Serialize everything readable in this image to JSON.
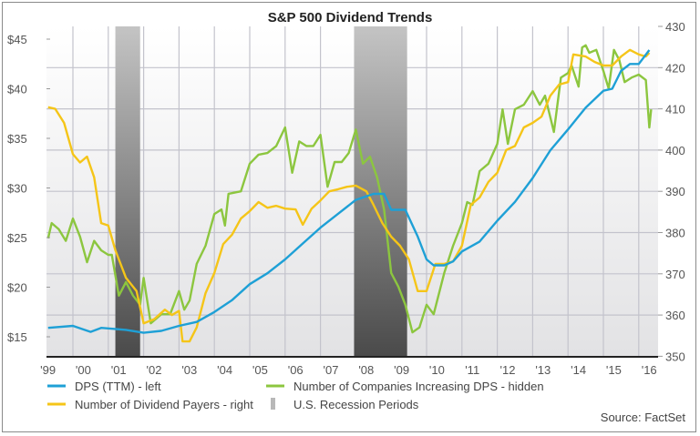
{
  "chart_data": {
    "type": "line",
    "title": "S&P 500 Dividend Trends",
    "source": "Source: FactSet",
    "x_ticks": [
      "'99",
      "'00",
      "'01",
      "'02",
      "'03",
      "'04",
      "'05",
      "'06",
      "'07",
      "'08",
      "'09",
      "'10",
      "'11",
      "'12",
      "'13",
      "'14",
      "'15",
      "'16"
    ],
    "left_axis": {
      "ticks": [
        "$15",
        "$20",
        "$25",
        "$30",
        "$35",
        "$40",
        "$45"
      ],
      "values": [
        15,
        20,
        25,
        30,
        35,
        40,
        45
      ],
      "range": [
        13,
        46.2
      ]
    },
    "right_axis": {
      "ticks": [
        "350",
        "360",
        "370",
        "380",
        "390",
        "400",
        "410",
        "420",
        "430"
      ],
      "values": [
        350,
        360,
        370,
        380,
        390,
        400,
        410,
        420,
        430
      ],
      "range": [
        350,
        430
      ]
    },
    "grid": true,
    "legend_placement": "bottom",
    "recessions": [
      {
        "start": 2001.2,
        "end": 2001.9
      },
      {
        "start": 2007.95,
        "end": 2009.45
      }
    ],
    "legend": [
      {
        "label": "DPS (TTM) - left",
        "color": "#1ea0d6",
        "kind": "line"
      },
      {
        "label": "Number of Companies Increasing DPS - hidden",
        "color": "#8cc63f",
        "kind": "line"
      },
      {
        "label": "Number of Dividend Payers - right",
        "color": "#f5c518",
        "kind": "line"
      },
      {
        "label": "U.S. Recession Periods",
        "color": "#b8b8b8",
        "kind": "bar"
      }
    ],
    "series": [
      {
        "name": "DPS (TTM) - left",
        "axis": "left",
        "color": "#1ea0d6",
        "x": [
          1999.3,
          2000.0,
          2000.5,
          2000.8,
          2001.5,
          2002.0,
          2002.5,
          2003.0,
          2003.5,
          2004.0,
          2004.5,
          2005.0,
          2005.5,
          2006.0,
          2006.5,
          2007.0,
          2007.5,
          2008.0,
          2008.5,
          2008.8,
          2009.0,
          2009.4,
          2009.75,
          2010.0,
          2010.2,
          2010.5,
          2010.75,
          2011.0,
          2011.5,
          2012.0,
          2012.5,
          2013.0,
          2013.5,
          2014.0,
          2014.5,
          2015.0,
          2015.25,
          2015.5,
          2015.75,
          2016.0,
          2016.3
        ],
        "y": [
          15.9,
          16.1,
          15.5,
          15.9,
          15.7,
          15.4,
          15.6,
          16.1,
          16.5,
          17.5,
          18.7,
          20.3,
          21.4,
          22.8,
          24.4,
          26.0,
          27.4,
          28.8,
          29.4,
          29.4,
          27.8,
          27.8,
          25.1,
          22.8,
          22.2,
          22.2,
          22.6,
          23.6,
          24.6,
          26.7,
          28.6,
          31.0,
          33.8,
          35.9,
          38.1,
          39.8,
          40.0,
          41.8,
          42.5,
          42.5,
          43.9
        ]
      },
      {
        "name": "Number of Companies Increasing DPS - hidden",
        "axis": "hidden",
        "color": "#8cc63f",
        "x": [
          1999.3,
          1999.4,
          1999.6,
          1999.8,
          2000.0,
          2000.2,
          2000.4,
          2000.6,
          2000.8,
          2001.0,
          2001.1,
          2001.3,
          2001.5,
          2001.7,
          2001.9,
          2002.0,
          2002.2,
          2002.5,
          2002.75,
          2003.0,
          2003.15,
          2003.3,
          2003.5,
          2003.75,
          2004.0,
          2004.2,
          2004.3,
          2004.4,
          2004.75,
          2005.0,
          2005.25,
          2005.5,
          2005.75,
          2006.0,
          2006.2,
          2006.4,
          2006.6,
          2006.8,
          2007.0,
          2007.2,
          2007.4,
          2007.6,
          2007.8,
          2008.0,
          2008.2,
          2008.4,
          2008.6,
          2008.8,
          2009.0,
          2009.2,
          2009.4,
          2009.6,
          2009.8,
          2010.0,
          2010.2,
          2010.5,
          2010.75,
          2011.0,
          2011.15,
          2011.3,
          2011.5,
          2011.75,
          2012.0,
          2012.15,
          2012.3,
          2012.5,
          2012.75,
          2013.0,
          2013.2,
          2013.35,
          2013.6,
          2013.8,
          2014.0,
          2014.1,
          2014.3,
          2014.4,
          2014.5,
          2014.6,
          2014.8,
          2015.0,
          2015.15,
          2015.3,
          2015.45,
          2015.6,
          2015.8,
          2016.0,
          2016.2,
          2016.3,
          2016.35
        ],
        "y": [
          378.6,
          382.3,
          380.8,
          378,
          383.4,
          379,
          372.8,
          378,
          375.7,
          374.6,
          374.6,
          364.7,
          368,
          364.7,
          362.5,
          369,
          358,
          360.2,
          360.2,
          365.8,
          361.3,
          363.5,
          372.4,
          376.8,
          384.5,
          385.6,
          381.7,
          389.4,
          390,
          396.7,
          398.9,
          399.3,
          401,
          405.5,
          394.5,
          402.1,
          401,
          401,
          403.7,
          391.1,
          397.1,
          397.1,
          399.3,
          405,
          396.7,
          398.4,
          393.4,
          385.6,
          370.2,
          366.9,
          362.5,
          355.8,
          357,
          362.5,
          360.2,
          370.2,
          376.8,
          382.3,
          387.4,
          386.7,
          394.9,
          396.7,
          401.5,
          409.9,
          401.5,
          409.9,
          411,
          414.3,
          411,
          413.2,
          404.4,
          417.6,
          418.7,
          420.5,
          415.4,
          424.9,
          425.4,
          423.6,
          424.3,
          419.2,
          414.9,
          424.3,
          421.8,
          416.5,
          417.6,
          418.3,
          417,
          405.5,
          409.9
        ]
      },
      {
        "name": "Number of Dividend Payers - right",
        "axis": "right",
        "color": "#f5c518",
        "x": [
          1999.3,
          1999.5,
          1999.75,
          2000.0,
          2000.2,
          2000.4,
          2000.6,
          2000.8,
          2001.0,
          2001.2,
          2001.5,
          2001.8,
          2002.0,
          2002.3,
          2002.6,
          2002.8,
          2003.0,
          2003.1,
          2003.3,
          2003.5,
          2003.75,
          2004.0,
          2004.25,
          2004.5,
          2004.75,
          2005.0,
          2005.25,
          2005.5,
          2005.75,
          2006.0,
          2006.3,
          2006.5,
          2006.75,
          2007.0,
          2007.25,
          2007.5,
          2007.75,
          2008.0,
          2008.3,
          2008.5,
          2008.75,
          2009.0,
          2009.25,
          2009.5,
          2009.75,
          2010.0,
          2010.25,
          2010.5,
          2010.75,
          2011.0,
          2011.25,
          2011.5,
          2011.75,
          2012.0,
          2012.25,
          2012.5,
          2012.75,
          2013.0,
          2013.25,
          2013.5,
          2013.75,
          2014.0,
          2014.15,
          2014.5,
          2014.75,
          2015.0,
          2015.25,
          2015.5,
          2015.75,
          2016.0,
          2016.2,
          2016.3
        ],
        "y": [
          410.4,
          410,
          406.6,
          399,
          397,
          398.4,
          393.4,
          382.3,
          381.7,
          375.7,
          369,
          365.8,
          358,
          359,
          361.3,
          360,
          361,
          353.6,
          353.6,
          357,
          365.3,
          370.2,
          377.2,
          379.5,
          383.4,
          385.2,
          387.4,
          386,
          386.5,
          385.8,
          385.6,
          381.9,
          385.8,
          387.8,
          390,
          390.5,
          391.1,
          391.4,
          390,
          386.7,
          382.3,
          379,
          376.8,
          373.5,
          365.8,
          365.8,
          372.4,
          372.4,
          373,
          376.8,
          386.7,
          388.5,
          392.3,
          394.5,
          400,
          401,
          405.5,
          406.6,
          408.1,
          413.2,
          415.9,
          416.5,
          423.2,
          422.7,
          421.4,
          420.5,
          420.5,
          422.7,
          424.3,
          423.2,
          422.7,
          423.6
        ]
      }
    ]
  }
}
